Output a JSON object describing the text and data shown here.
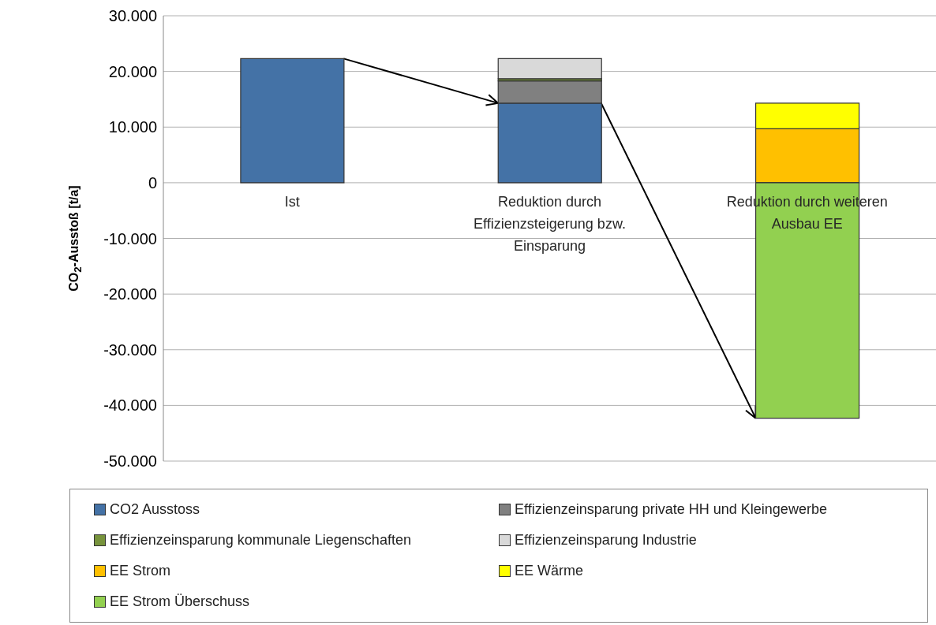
{
  "chart_data": {
    "type": "bar",
    "stacked": true,
    "ylabel": "CO$_{2}$-Ausstoß [t/a]",
    "categories": [
      "Ist",
      "Reduktion durch Effizienzsteigerung bzw. Einsparung",
      "Reduktion durch weiteren Ausbau EE"
    ],
    "series": [
      {
        "name": "CO2 Ausstoss",
        "color": "#4472a6",
        "values": [
          22300,
          14300,
          null
        ]
      },
      {
        "name": "Effizienzeinsparung private HH und Kleingewerbe",
        "color": "#808080",
        "values": [
          null,
          4000,
          null
        ]
      },
      {
        "name": "Effizienzeinsparung kommunale Liegenschaften",
        "color": "#77933c",
        "values": [
          null,
          400,
          null
        ]
      },
      {
        "name": "Effizienzeinsparung Industrie",
        "color": "#d9d9d9",
        "values": [
          null,
          3600,
          null
        ]
      },
      {
        "name": "EE Strom",
        "color": "#ffc000",
        "values": [
          null,
          null,
          9700
        ]
      },
      {
        "name": "EE Wärme",
        "color": "#ffff00",
        "values": [
          null,
          null,
          4600
        ]
      },
      {
        "name": "EE Strom Überschuss",
        "color": "#92d050",
        "values": [
          null,
          null,
          -42300
        ]
      }
    ],
    "ylim": [
      -50000,
      30000
    ],
    "yticks": [
      {
        "value": -50000,
        "label": "-50.000"
      },
      {
        "value": -40000,
        "label": "-40.000"
      },
      {
        "value": -30000,
        "label": "-30.000"
      },
      {
        "value": -20000,
        "label": "-20.000"
      },
      {
        "value": -10000,
        "label": "-10.000"
      },
      0,
      {
        "value": 10000,
        "label": "10.000"
      },
      {
        "value": 20000,
        "label": "20.000"
      },
      {
        "value": 30000,
        "label": "30.000"
      }
    ],
    "grid": "y",
    "legend": "bottom"
  }
}
